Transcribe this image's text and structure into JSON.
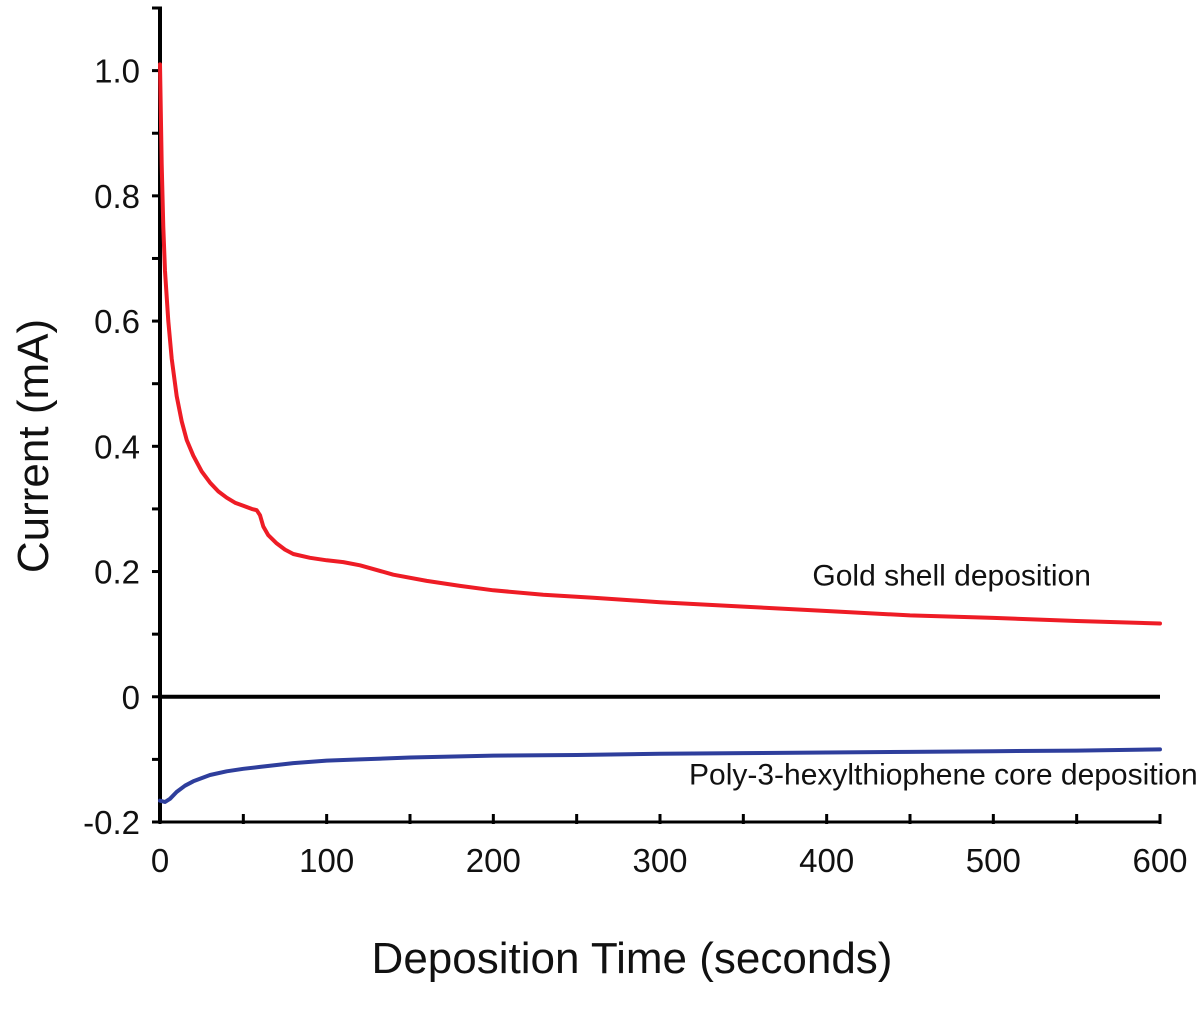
{
  "chart_data": {
    "type": "line",
    "title": "",
    "xlabel": "Deposition Time (seconds)",
    "ylabel": "Current (mA)",
    "xlim": [
      0,
      600
    ],
    "ylim": [
      -0.2,
      1.1
    ],
    "x_ticks": [
      0,
      100,
      200,
      300,
      400,
      500,
      600
    ],
    "x_tick_labels": [
      "0",
      "100",
      "200",
      "300",
      "400",
      "500",
      "600"
    ],
    "y_ticks": [
      -0.2,
      0,
      0.2,
      0.4,
      0.6,
      0.8,
      1.0
    ],
    "y_tick_labels": [
      "-0.2",
      "0",
      "0.2",
      "0.4",
      "0.6",
      "0.8",
      "1.0"
    ],
    "y_minor_step": 0.1,
    "x_minor_step": 50,
    "grid": false,
    "legend": "none",
    "zero_line": true,
    "series": [
      {
        "color": "#ee1c25",
        "x": [
          0,
          1,
          2,
          3,
          5,
          7,
          10,
          13,
          16,
          20,
          25,
          30,
          35,
          40,
          45,
          50,
          55,
          58,
          60,
          62,
          65,
          70,
          75,
          80,
          90,
          100,
          110,
          120,
          140,
          160,
          180,
          200,
          230,
          260,
          300,
          350,
          400,
          450,
          500,
          550,
          600
        ],
        "y": [
          1.01,
          0.85,
          0.75,
          0.68,
          0.6,
          0.54,
          0.48,
          0.44,
          0.41,
          0.385,
          0.36,
          0.342,
          0.328,
          0.318,
          0.31,
          0.305,
          0.3,
          0.298,
          0.29,
          0.272,
          0.258,
          0.245,
          0.235,
          0.228,
          0.222,
          0.218,
          0.215,
          0.21,
          0.195,
          0.185,
          0.177,
          0.17,
          0.163,
          0.158,
          0.151,
          0.144,
          0.137,
          0.13,
          0.126,
          0.121,
          0.117
        ]
      },
      {
        "color": "#2e3e9c",
        "x": [
          0,
          3,
          6,
          10,
          15,
          20,
          30,
          40,
          50,
          60,
          80,
          100,
          120,
          150,
          200,
          250,
          300,
          350,
          400,
          450,
          500,
          550,
          600
        ],
        "y": [
          -0.166,
          -0.168,
          -0.163,
          -0.152,
          -0.142,
          -0.135,
          -0.125,
          -0.119,
          -0.115,
          -0.112,
          -0.106,
          -0.102,
          -0.1,
          -0.097,
          -0.094,
          -0.093,
          -0.091,
          -0.09,
          -0.089,
          -0.088,
          -0.087,
          -0.086,
          -0.084
        ]
      }
    ],
    "annotations": [
      {
        "text": "Gold shell deposition",
        "x": 475,
        "y": 0.178
      },
      {
        "text": "Poly-3-hexylthiophene core deposition",
        "x": 470,
        "y": -0.14
      }
    ]
  }
}
